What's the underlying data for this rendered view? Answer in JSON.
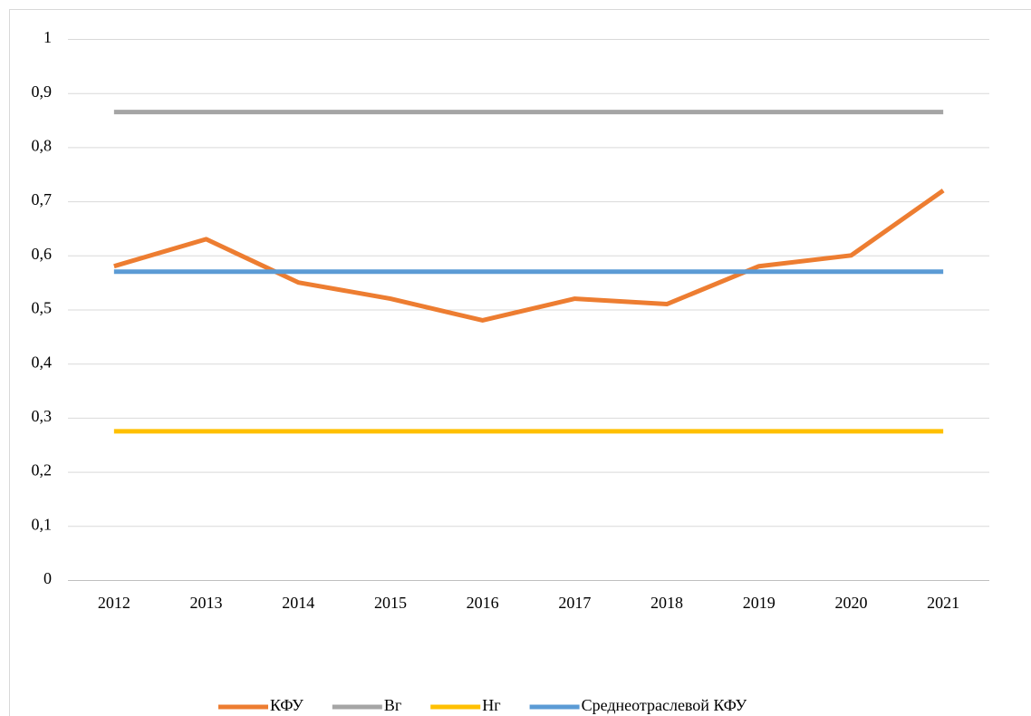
{
  "chart_data": {
    "type": "line",
    "categories": [
      "2012",
      "2013",
      "2014",
      "2015",
      "2016",
      "2017",
      "2018",
      "2019",
      "2020",
      "2021"
    ],
    "series": [
      {
        "name": "КФУ",
        "color": "#ed7d31",
        "values": [
          0.58,
          0.63,
          0.55,
          0.52,
          0.48,
          0.52,
          0.51,
          0.58,
          0.6,
          0.72
        ]
      },
      {
        "name": "Вг",
        "color": "#a5a5a5",
        "values": [
          0.865,
          0.865,
          0.865,
          0.865,
          0.865,
          0.865,
          0.865,
          0.865,
          0.865,
          0.865
        ]
      },
      {
        "name": "Нг",
        "color": "#ffc000",
        "values": [
          0.275,
          0.275,
          0.275,
          0.275,
          0.275,
          0.275,
          0.275,
          0.275,
          0.275,
          0.275
        ]
      },
      {
        "name": "Среднеотраслевой КФУ",
        "color": "#5b9bd5",
        "values": [
          0.57,
          0.57,
          0.57,
          0.57,
          0.57,
          0.57,
          0.57,
          0.57,
          0.57,
          0.57
        ]
      }
    ],
    "ylim": [
      0,
      1
    ],
    "yticks": [
      0,
      {
        "value": 0.1,
        "label": "0,1"
      },
      {
        "value": 0.2,
        "label": "0,2"
      },
      {
        "value": 0.3,
        "label": "0,3"
      },
      {
        "value": 0.4,
        "label": "0,4"
      },
      {
        "value": 0.5,
        "label": "0,5"
      },
      {
        "value": 0.6,
        "label": "0,6"
      },
      {
        "value": 0.7,
        "label": "0,7"
      },
      {
        "value": 0.8,
        "label": "0,8"
      },
      {
        "value": 0.9,
        "label": "0,9"
      },
      1
    ],
    "grid": true,
    "legend": "bottom"
  }
}
